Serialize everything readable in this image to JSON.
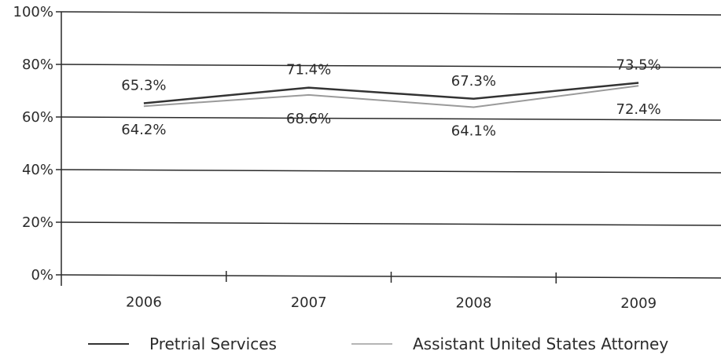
{
  "chart_data": {
    "type": "line",
    "categories": [
      "2006",
      "2007",
      "2008",
      "2009"
    ],
    "series": [
      {
        "name": "Pretrial Services",
        "values": [
          65.3,
          71.4,
          67.3,
          73.5
        ],
        "labels": [
          "65.3%",
          "71.4%",
          "67.3%",
          "73.5%"
        ],
        "color": "#333333"
      },
      {
        "name": "Assistant United States Attorney",
        "values": [
          64.2,
          68.6,
          64.1,
          72.4
        ],
        "labels": [
          "64.2%",
          "68.6%",
          "64.1%",
          "72.4%"
        ],
        "color": "#9a9a9a"
      }
    ],
    "y_ticks": [
      "0%",
      "20%",
      "40%",
      "60%",
      "80%",
      "100%"
    ],
    "ylim": [
      0,
      100
    ],
    "grid": true,
    "legend_position": "bottom",
    "title": "",
    "xlabel": "",
    "ylabel": ""
  }
}
